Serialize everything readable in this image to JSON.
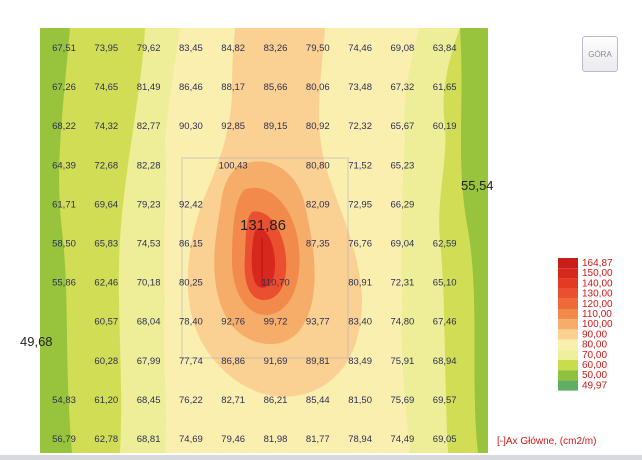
{
  "toolbar": {
    "top_view_label": "GÓRA"
  },
  "map": {
    "edge_label_left": "49,68",
    "edge_label_right": "55,54",
    "peak_label": "131,86",
    "rows": [
      [
        "67,51",
        "73,95",
        "79,62",
        "83,45",
        "84,82",
        "83,26",
        "79,50",
        "74,46",
        "69,08",
        "63,84"
      ],
      [
        "67,26",
        "74,65",
        "81,49",
        "86,46",
        "88,17",
        "85,66",
        "80,06",
        "73,48",
        "67,32",
        "61,65"
      ],
      [
        "68,22",
        "74,32",
        "82,77",
        "90,30",
        "92,85",
        "89,15",
        "80,92",
        "72,32",
        "65,67",
        "60,19"
      ],
      [
        "64,39",
        "72,68",
        "82,28",
        "",
        "100,43",
        "",
        "80,80",
        "71,52",
        "65,23",
        ""
      ],
      [
        "61,71",
        "69,64",
        "79,23",
        "92,42",
        "",
        "",
        "82,09",
        "72,95",
        "66,29",
        ""
      ],
      [
        "58,50",
        "65,83",
        "74,53",
        "86,15",
        "",
        "",
        "87,35",
        "76,76",
        "69,04",
        "62,59"
      ],
      [
        "55,86",
        "62,46",
        "70,18",
        "80,25",
        "",
        "110,70",
        "",
        "80,91",
        "72,31",
        "65,10"
      ],
      [
        "",
        "60,57",
        "68,04",
        "78,40",
        "92,76",
        "99,72",
        "93,77",
        "83,40",
        "74,80",
        "67,46"
      ],
      [
        "",
        "60,28",
        "67,99",
        "77,74",
        "86,86",
        "91,69",
        "89,81",
        "83,49",
        "75,91",
        "68,94"
      ],
      [
        "54,83",
        "61,20",
        "68,45",
        "76,22",
        "82,71",
        "86,21",
        "85,44",
        "81,50",
        "75,69",
        "69,57"
      ],
      [
        "56,79",
        "62,78",
        "68,81",
        "74,69",
        "79,46",
        "81,98",
        "81,77",
        "78,94",
        "74,49",
        "69,05"
      ]
    ]
  },
  "legend": {
    "caption": "[-]Ax Główne, (cm2/m)",
    "entries": [
      {
        "label": "164,87",
        "color": "#c81e1a"
      },
      {
        "label": "150,00",
        "color": "#d7281e"
      },
      {
        "label": "140,00",
        "color": "#e33a24"
      },
      {
        "label": "130,00",
        "color": "#ea5030"
      },
      {
        "label": "120,00",
        "color": "#ef6a3a"
      },
      {
        "label": "110,00",
        "color": "#f28a4c"
      },
      {
        "label": "100,00",
        "color": "#f6ad6a"
      },
      {
        "label": "90,00",
        "color": "#fad192"
      },
      {
        "label": "80,00",
        "color": "#fbefb0"
      },
      {
        "label": "70,00",
        "color": "#eef09c"
      },
      {
        "label": "60,00",
        "color": "#c9dc4c"
      },
      {
        "label": "50,00",
        "color": "#8ec23c"
      },
      {
        "label": "49,97",
        "color": "#5fae64"
      }
    ]
  }
}
